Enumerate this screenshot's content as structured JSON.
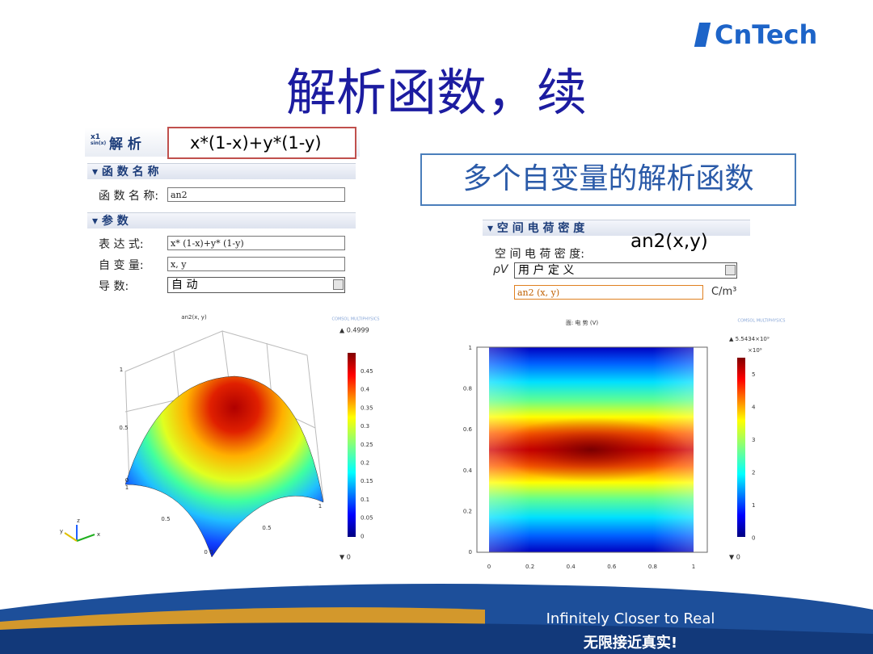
{
  "header": {
    "logo_cn": "Cn",
    "logo_tech": "Tech",
    "title": "解析函数，续"
  },
  "callouts": {
    "expression": "x*(1-x)+y*(1-y)",
    "note": "多个自变量的解析函数",
    "function_call": "an2(x,y)"
  },
  "analytic_panel": {
    "icon_top": "x1",
    "icon_bottom": "sin(x)",
    "title": "解 析",
    "function_name_section": "函 数 名 称",
    "function_name_label": "函 数 名 称:",
    "function_name_value": "an2",
    "parameters_section": "参 数",
    "expression_label": "表 达 式:",
    "expression_value": "x* (1-x)+y* (1-y)",
    "arguments_label": "自 变 量:",
    "arguments_value": "x, y",
    "derivatives_label": "导 数:",
    "derivatives_value": "自 动"
  },
  "charge_panel": {
    "section": "空 间 电 荷 密 度",
    "label": "空 间 电 荷 密 度:",
    "symbol": "ρV",
    "type_value": "用 户 定 义",
    "density_value": "an2 (x, y)",
    "unit": "C/m³"
  },
  "surface_plot": {
    "title": "an2(x, y)",
    "brand": "COMSOL MULTIPHYSICS",
    "max": "▲ 0.4999",
    "min": "▼ 0",
    "colorbar_ticks": [
      "0.45",
      "0.4",
      "0.35",
      "0.3",
      "0.25",
      "0.2",
      "0.15",
      "0.1",
      "0.05",
      "0"
    ],
    "z_ticks": [
      "1",
      "0.5",
      "0"
    ],
    "base_ticks": [
      "1",
      "0.5",
      "1",
      "0.5",
      "0 0"
    ],
    "axes": [
      "z",
      "y",
      "x"
    ]
  },
  "potential_plot": {
    "title": "面: 电 势 (V)",
    "brand": "COMSOL MULTIPHYSICS",
    "max": "▲ 5.5434×10⁹",
    "scale": "×10⁹",
    "min": "▼ 0",
    "colorbar_ticks": [
      "5",
      "4",
      "3",
      "2",
      "1",
      "0"
    ],
    "y_ticks": [
      "1",
      "0.8",
      "0.6",
      "0.4",
      "0.2",
      "0"
    ],
    "x_ticks": [
      "0",
      "0.2",
      "0.4",
      "0.6",
      "0.8",
      "1"
    ]
  },
  "footer": {
    "slogan_en": "Infinitely Closer to Real",
    "slogan_cn": "无限接近真实!"
  }
}
